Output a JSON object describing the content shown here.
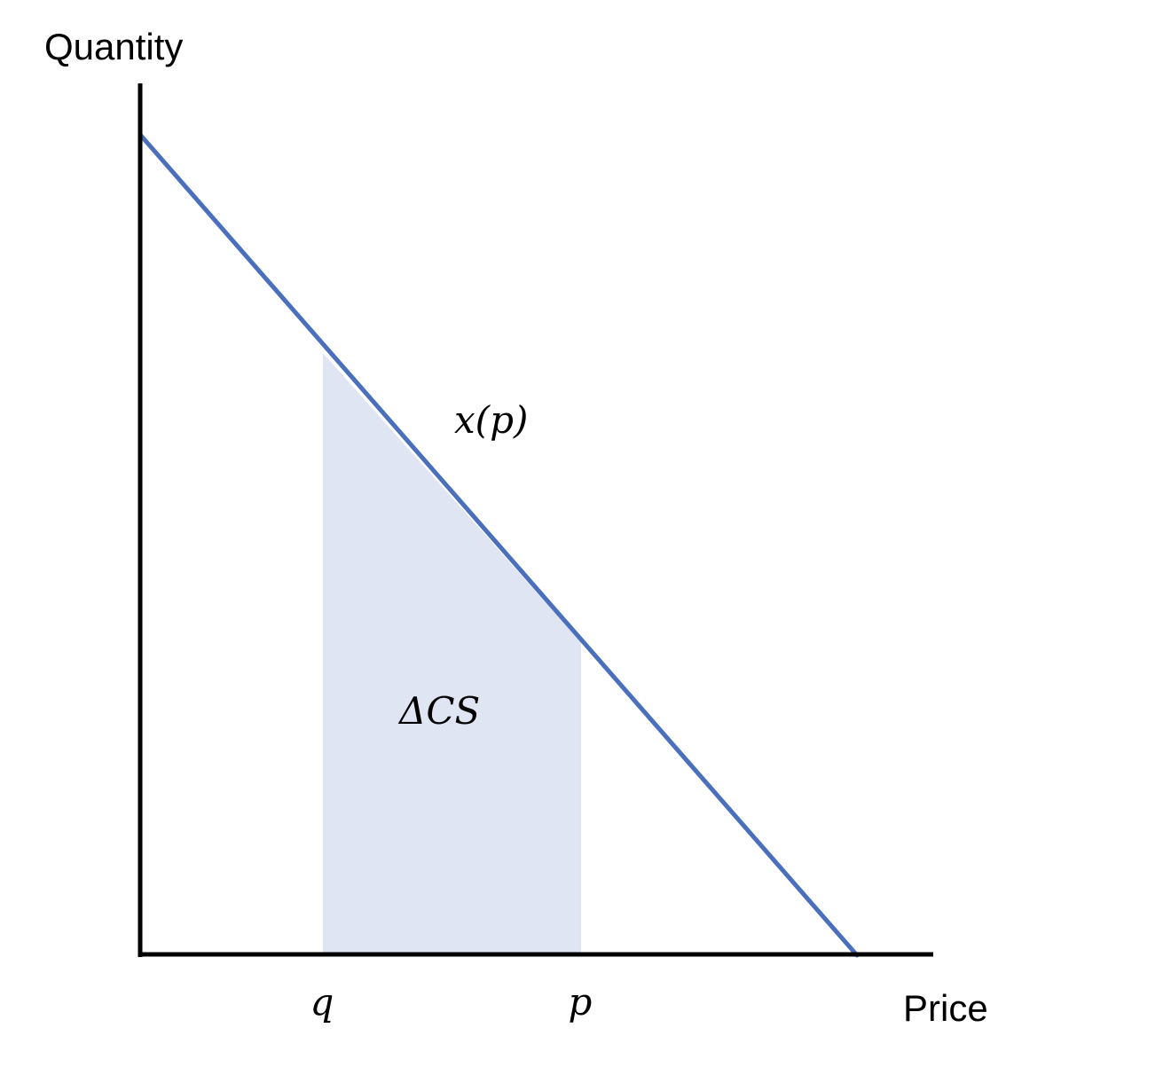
{
  "y_axis_title": "Quantity",
  "x_axis_title": "Price",
  "curve_label": "x(p)",
  "area_label": "ΔCS",
  "tick_q": "q",
  "tick_p": "p",
  "colors": {
    "curve": "#4a6fbd",
    "shaded_area": "#dfe5f3",
    "axes": "#000000",
    "background": "#ffffff"
  }
}
